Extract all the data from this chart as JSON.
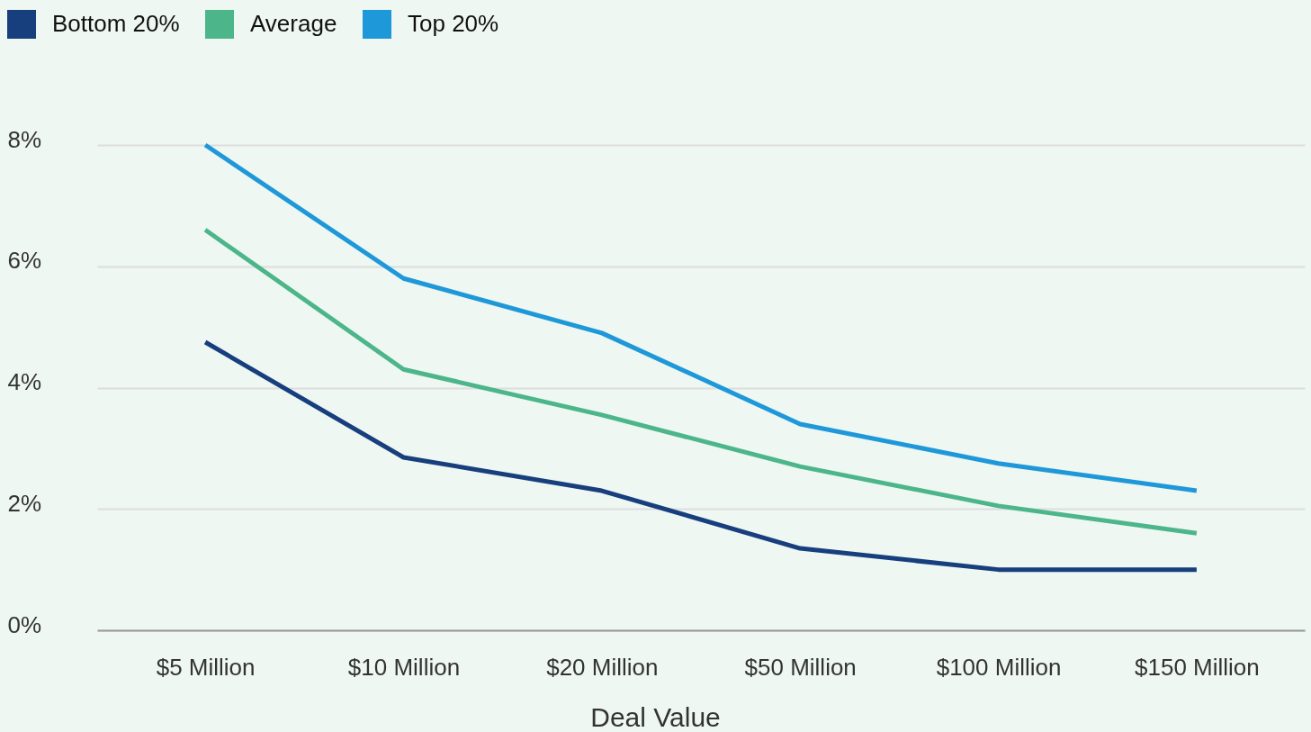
{
  "chart_data": {
    "type": "line",
    "xlabel": "Deal Value",
    "categories": [
      "$5 Million",
      "$10 Million",
      "$20 Million",
      "$50 Million",
      "$100 Million",
      "$150 Million"
    ],
    "series": [
      {
        "name": "Bottom 20%",
        "color": "#173e7d",
        "values": [
          4.75,
          2.85,
          2.3,
          1.35,
          1.0,
          1.0
        ]
      },
      {
        "name": "Average",
        "color": "#4cb68a",
        "values": [
          6.6,
          4.3,
          3.55,
          2.7,
          2.05,
          1.6
        ]
      },
      {
        "name": "Top 20%",
        "color": "#1e98d9",
        "values": [
          8.0,
          5.8,
          4.9,
          3.4,
          2.75,
          2.3
        ]
      }
    ],
    "ylim": [
      0,
      8
    ],
    "yticks": [
      {
        "value": 0,
        "label": "0%"
      },
      {
        "value": 2,
        "label": "2%"
      },
      {
        "value": 4,
        "label": "4%"
      },
      {
        "value": 6,
        "label": "6%"
      },
      {
        "value": 8,
        "label": "8%"
      }
    ],
    "grid": "y",
    "legend": "top left",
    "marker": "none",
    "line_style": "solid"
  }
}
